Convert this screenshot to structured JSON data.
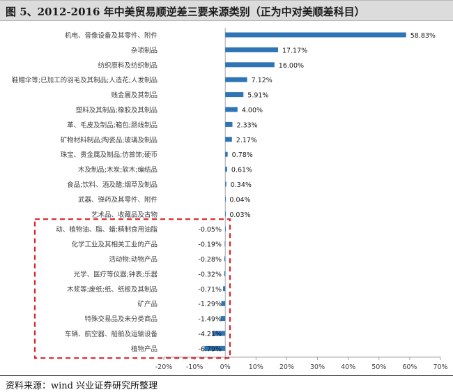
{
  "header": {
    "title": "图 5、2012-2016 年中美贸易顺逆差三要来源类别（正为中对美顺差科目）"
  },
  "footer": {
    "source": "资料来源：wind   兴业证券研究所整理"
  },
  "colors": {
    "bar": "#2e75b6",
    "highlight_box": "#d9242b",
    "axis": "#a6a6a6",
    "text": "#404040"
  },
  "chart_data": {
    "type": "bar",
    "orientation": "horizontal",
    "categories": [
      "机电、音像设备及其零件、附件",
      "杂项制品",
      "纺织原料及纺织制品",
      "鞋帽伞等;已加工的羽毛及其制品;人造花;人发制品",
      "贱金属及其制品",
      "塑料及其制品;橡胶及其制品",
      "革、毛皮及制品;箱包;肠线制品",
      "矿物材料制品;陶瓷品;玻璃及制品",
      "珠宝、贵金属及制品;仿首饰;硬币",
      "木及制品;木炭;软木;编结品",
      "食品;饮料、酒及醋;烟草及制品",
      "武器、弹药及其零件、附件",
      "艺术品、收藏品及古物",
      "动、植物油、脂、蜡;精制食用油脂",
      "化学工业及其相关工业的产品",
      "活动物;动物产品",
      "光学、医疗等仪器;钟表;乐器",
      "木浆等;废纸;纸、纸板及其制品",
      "矿产品",
      "特殊交易品及未分类商品",
      "车辆、航空器、船舶及运输设备",
      "植物产品"
    ],
    "values": [
      58.83,
      17.17,
      16.0,
      7.12,
      5.91,
      4.0,
      2.33,
      2.17,
      0.78,
      0.61,
      0.34,
      0.04,
      0.03,
      -0.05,
      -0.19,
      -0.28,
      -0.32,
      -0.71,
      -1.29,
      -1.49,
      -4.21,
      -6.79
    ],
    "value_labels": [
      "58.83%",
      "17.17%",
      "16.00%",
      "7.12%",
      "5.91%",
      "4.00%",
      "2.33%",
      "2.17%",
      "0.78%",
      "0.61%",
      "0.34%",
      "0.04%",
      "0.03%",
      "-0.05%",
      "-0.19%",
      "-0.28%",
      "-0.32%",
      "-0.71%",
      "-1.29%",
      "-1.49%",
      "-4.21%",
      "-6.79%"
    ],
    "xlim": [
      -20,
      70
    ],
    "x_ticks": [
      -20,
      -10,
      0,
      10,
      20,
      30,
      40,
      50,
      60,
      70
    ],
    "x_tick_labels": [
      "-20%",
      "-10%",
      "0%",
      "10%",
      "20%",
      "30%",
      "40%",
      "50%",
      "60%",
      "70%"
    ],
    "grid": false,
    "highlighted_range": [
      13,
      21
    ]
  }
}
